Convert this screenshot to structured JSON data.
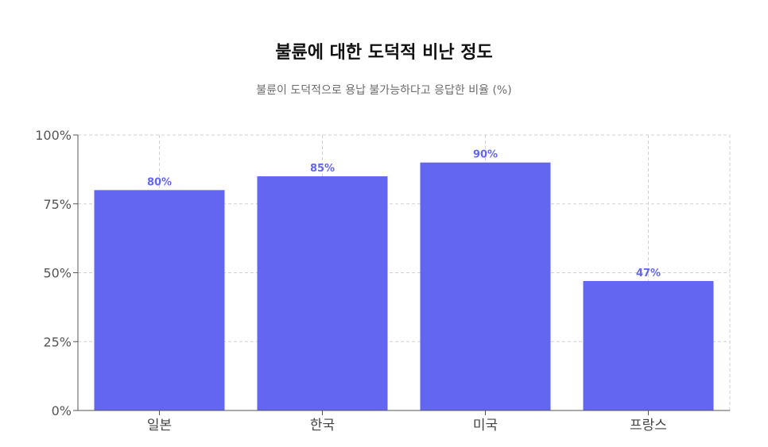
{
  "chart_data": {
    "type": "bar",
    "title": "불륜에 대한 도덕적 비난 정도",
    "subtitle": "불륜이 도덕적으로 용납 불가능하다고 응답한 비율 (%)",
    "categories": [
      "일본",
      "한국",
      "미국",
      "프랑스"
    ],
    "values": [
      80,
      85,
      90,
      47
    ],
    "data_labels": [
      "80%",
      "85%",
      "90%",
      "47%"
    ],
    "ylim": [
      0,
      100
    ],
    "yticks": [
      0,
      25,
      50,
      75,
      100
    ],
    "ytick_labels": [
      "0%",
      "25%",
      "50%",
      "75%",
      "100%"
    ],
    "grid": true,
    "colors": {
      "bar": "#6366f1",
      "label": "#6366f1",
      "grid": "#d0d0d0",
      "axis": "#555555"
    }
  }
}
